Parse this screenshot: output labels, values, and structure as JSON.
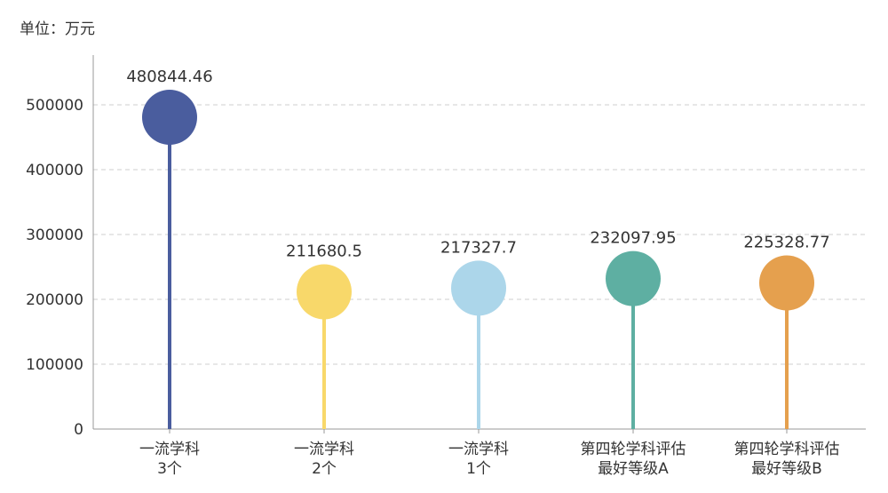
{
  "chart_data": {
    "type": "lollipop",
    "unit_label": "单位：万元",
    "categories": [
      [
        "一流学科",
        "3个"
      ],
      [
        "一流学科",
        "2个"
      ],
      [
        "一流学科",
        "1个"
      ],
      [
        "第四轮学科评估",
        "最好等级A"
      ],
      [
        "第四轮学科评估",
        "最好等级B"
      ]
    ],
    "values": [
      480844.46,
      211680.5,
      217327.7,
      232097.95,
      225328.77
    ],
    "value_labels": [
      "480844.46",
      "211680.5",
      "217327.7",
      "232097.95",
      "225328.77"
    ],
    "colors": [
      "#4a5d9e",
      "#f8d86a",
      "#acd6ea",
      "#5eafa2",
      "#e5a04e"
    ],
    "ylim": [
      0,
      500000
    ],
    "yticks": [
      0,
      100000,
      200000,
      300000,
      400000,
      500000
    ],
    "ytick_labels": [
      "0",
      "100000",
      "200000",
      "300000",
      "400000",
      "500000"
    ],
    "grid": true
  }
}
